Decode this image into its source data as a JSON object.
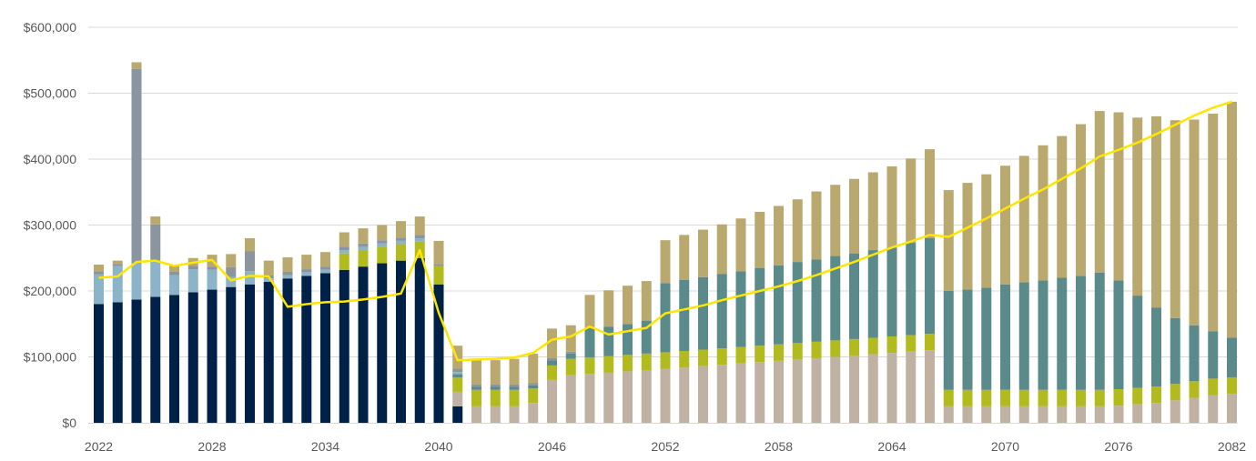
{
  "chart_data": {
    "type": "bar",
    "stacked": true,
    "title": "",
    "xlabel": "",
    "ylabel": "",
    "ylim": [
      0,
      600000
    ],
    "yticks": [
      "$0",
      "$100,000",
      "$200,000",
      "$300,000",
      "$400,000",
      "$500,000",
      "$600,000"
    ],
    "xticks": [
      "2022",
      "2028",
      "2034",
      "2040",
      "2046",
      "2052",
      "2058",
      "2064",
      "2070",
      "2076",
      "2082"
    ],
    "grid": "horizontal",
    "legend": "none",
    "x": [
      2022,
      2023,
      2024,
      2025,
      2026,
      2027,
      2028,
      2029,
      2030,
      2031,
      2032,
      2033,
      2034,
      2035,
      2036,
      2037,
      2038,
      2039,
      2040,
      2041,
      2042,
      2043,
      2044,
      2045,
      2046,
      2047,
      2048,
      2049,
      2050,
      2051,
      2052,
      2053,
      2054,
      2055,
      2056,
      2057,
      2058,
      2059,
      2060,
      2061,
      2062,
      2063,
      2064,
      2065,
      2066,
      2067,
      2068,
      2069,
      2070,
      2071,
      2072,
      2073,
      2074,
      2075,
      2076,
      2077,
      2078,
      2079,
      2080,
      2081,
      2082
    ],
    "series": [
      {
        "color": "#002147",
        "values": [
          180000,
          183000,
          187000,
          191000,
          194000,
          198000,
          202000,
          206000,
          210000,
          214000,
          219000,
          223000,
          227000,
          232000,
          237000,
          242000,
          246000,
          250000,
          210000,
          25000,
          0,
          0,
          0,
          0,
          0,
          0,
          0,
          0,
          0,
          0,
          0,
          0,
          0,
          0,
          0,
          0,
          0,
          0,
          0,
          0,
          0,
          0,
          0,
          0,
          0,
          0,
          0,
          0,
          0,
          0,
          0,
          0,
          0,
          0,
          0,
          0,
          0,
          0,
          0,
          0,
          0
        ]
      },
      {
        "color": "#BFB2A3",
        "values": [
          0,
          0,
          0,
          0,
          0,
          0,
          0,
          0,
          0,
          0,
          0,
          0,
          0,
          0,
          0,
          0,
          0,
          0,
          0,
          22000,
          25000,
          25000,
          25000,
          30000,
          65000,
          72000,
          74000,
          76000,
          78000,
          80000,
          82000,
          84000,
          86000,
          88000,
          90000,
          92000,
          94000,
          96000,
          98000,
          100000,
          102000,
          104000,
          106000,
          108000,
          110000,
          25000,
          25000,
          25000,
          25000,
          25000,
          25000,
          25000,
          25000,
          25000,
          26000,
          28000,
          30000,
          34000,
          38000,
          42000,
          44000
        ]
      },
      {
        "color": "#B2BB1E",
        "values": [
          0,
          0,
          0,
          0,
          0,
          0,
          0,
          0,
          0,
          0,
          0,
          0,
          0,
          25000,
          25000,
          25000,
          25000,
          25000,
          28000,
          22000,
          25000,
          25000,
          25000,
          22000,
          22000,
          25000,
          25000,
          25000,
          25000,
          25000,
          25000,
          25000,
          25000,
          25000,
          25000,
          25000,
          25000,
          25000,
          25000,
          25000,
          25000,
          25000,
          25000,
          25000,
          25000,
          25000,
          25000,
          25000,
          25000,
          25000,
          25000,
          25000,
          25000,
          25000,
          25000,
          25000,
          25000,
          25000,
          25000,
          25000,
          25000
        ]
      },
      {
        "color": "#5B8A8A",
        "values": [
          0,
          0,
          0,
          0,
          0,
          0,
          0,
          0,
          0,
          0,
          0,
          0,
          0,
          0,
          0,
          0,
          0,
          0,
          0,
          5000,
          5000,
          5000,
          5000,
          5000,
          8000,
          8000,
          45000,
          45000,
          47000,
          50000,
          105000,
          108000,
          110000,
          113000,
          115000,
          118000,
          120000,
          123000,
          125000,
          128000,
          130000,
          133000,
          135000,
          140000,
          145000,
          150000,
          152000,
          155000,
          160000,
          163000,
          166000,
          170000,
          173000,
          178000,
          165000,
          140000,
          120000,
          100000,
          85000,
          72000,
          60000
        ]
      },
      {
        "color": "#8CB4C8",
        "values": [
          45000,
          55000,
          55000,
          55000,
          30000,
          35000,
          30000,
          15000,
          20000,
          5000,
          5000,
          5000,
          5000,
          5000,
          5000,
          5000,
          5000,
          5000,
          0,
          3000,
          0,
          0,
          0,
          0,
          0,
          0,
          0,
          0,
          0,
          0,
          0,
          0,
          0,
          0,
          0,
          0,
          0,
          0,
          0,
          0,
          0,
          0,
          0,
          0,
          0,
          0,
          0,
          0,
          0,
          0,
          0,
          0,
          0,
          0,
          0,
          0,
          0,
          0,
          0,
          0,
          0
        ]
      },
      {
        "color": "#8A95A0",
        "values": [
          5000,
          3000,
          295000,
          55000,
          5000,
          5000,
          5000,
          15000,
          30000,
          5000,
          5000,
          5000,
          5000,
          5000,
          5000,
          5000,
          5000,
          5000,
          3000,
          5000,
          3000,
          3000,
          3000,
          3000,
          3000,
          3000,
          0,
          0,
          0,
          0,
          0,
          0,
          0,
          0,
          0,
          0,
          0,
          0,
          0,
          0,
          0,
          0,
          0,
          0,
          0,
          0,
          0,
          0,
          0,
          0,
          0,
          0,
          0,
          0,
          0,
          0,
          0,
          0,
          0,
          0,
          0
        ]
      },
      {
        "color": "#B9A96E",
        "values": [
          10000,
          5000,
          10000,
          12000,
          10000,
          12000,
          18000,
          20000,
          20000,
          22000,
          22000,
          22000,
          22000,
          22000,
          23000,
          23000,
          25000,
          28000,
          35000,
          35000,
          37000,
          37000,
          39000,
          45000,
          45000,
          40000,
          50000,
          55000,
          58000,
          60000,
          65000,
          68000,
          72000,
          75000,
          80000,
          85000,
          90000,
          95000,
          103000,
          108000,
          113000,
          118000,
          123000,
          128000,
          135000,
          153000,
          162000,
          172000,
          180000,
          192000,
          205000,
          215000,
          230000,
          245000,
          255000,
          270000,
          290000,
          300000,
          312000,
          330000,
          358000
        ]
      }
    ],
    "line": {
      "color": "#FFE600",
      "values": [
        220000,
        222000,
        244000,
        246000,
        238000,
        243000,
        247000,
        216000,
        223000,
        222000,
        176000,
        180000,
        183000,
        184000,
        187000,
        191000,
        196000,
        262000,
        167000,
        95000,
        96000,
        97000,
        99000,
        106000,
        126000,
        131000,
        146000,
        134000,
        139000,
        144000,
        166000,
        172000,
        178000,
        186000,
        193000,
        200000,
        207000,
        215000,
        224000,
        234000,
        244000,
        255000,
        266000,
        275000,
        285000,
        282000,
        296000,
        310000,
        325000,
        340000,
        354000,
        370000,
        386000,
        404000,
        414000,
        425000,
        438000,
        452000,
        466000,
        478000,
        487000
      ]
    }
  }
}
